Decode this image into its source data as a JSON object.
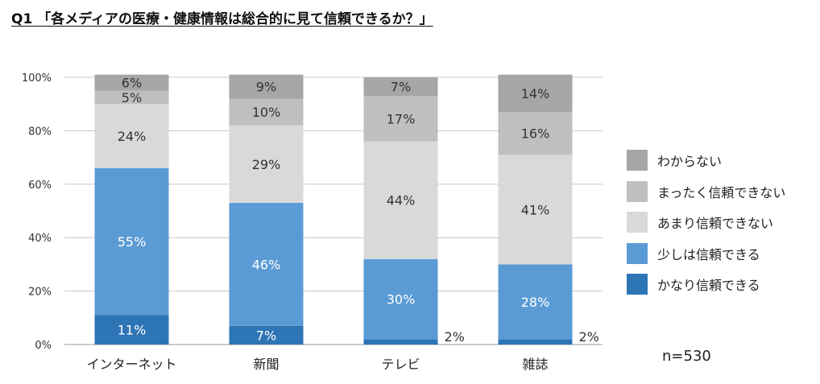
{
  "title": "Q1 「各メディアの医療・健康情報は総合的に見て信頼できるか？」",
  "note": "n=530",
  "chart_data": {
    "type": "bar",
    "stacked": true,
    "normalized": true,
    "categories": [
      "インターネット",
      "新聞",
      "テレビ",
      "雑誌"
    ],
    "yticks": [
      "0%",
      "20%",
      "40%",
      "60%",
      "80%",
      "100%"
    ],
    "ylim": [
      0,
      100
    ],
    "grid": true,
    "legend_position": "right",
    "series": [
      {
        "name": "かなり信頼できる",
        "color": "#2e75b6",
        "values": [
          11,
          7,
          2,
          2
        ],
        "labels": [
          "11%",
          "7%",
          "2%",
          "2%"
        ]
      },
      {
        "name": "少しは信頼できる",
        "color": "#5b9bd5",
        "values": [
          55,
          46,
          30,
          28
        ],
        "labels": [
          "55%",
          "46%",
          "30%",
          "28%"
        ]
      },
      {
        "name": "あまり信頼できない",
        "color": "#d9d9d9",
        "values": [
          24,
          29,
          44,
          41
        ],
        "labels": [
          "24%",
          "29%",
          "44%",
          "41%"
        ]
      },
      {
        "name": "まったく信頼できない",
        "color": "#bfbfbf",
        "values": [
          5,
          10,
          17,
          16
        ],
        "labels": [
          "5%",
          "10%",
          "17%",
          "16%"
        ]
      },
      {
        "name": "わからない",
        "color": "#a6a6a6",
        "values": [
          6,
          9,
          7,
          14
        ],
        "labels": [
          "6%",
          "9%",
          "7%",
          "14%"
        ]
      }
    ]
  }
}
